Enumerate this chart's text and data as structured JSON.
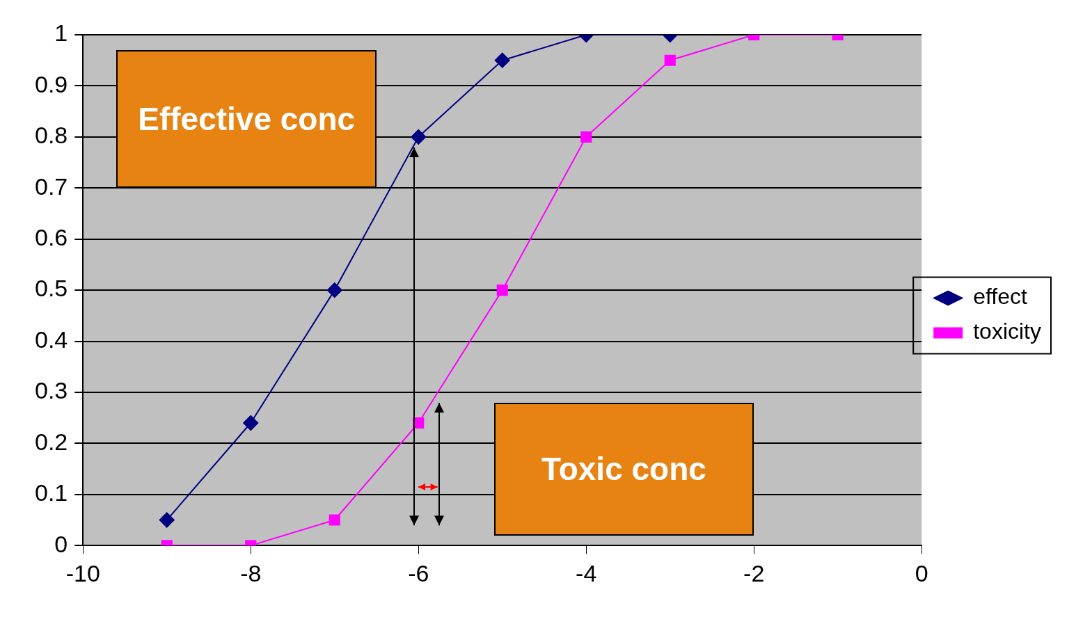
{
  "chart_data": {
    "type": "line",
    "series": [
      {
        "name": "effect",
        "color": "#000080",
        "marker": "diamond",
        "x": [
          -9,
          -8,
          -7,
          -6,
          -5,
          -4,
          -3
        ],
        "values": [
          0.05,
          0.24,
          0.5,
          0.8,
          0.95,
          1,
          1
        ]
      },
      {
        "name": "toxicity",
        "color": "#ff00ff",
        "marker": "square",
        "x": [
          -9,
          -8,
          -7,
          -6,
          -5,
          -4,
          -3,
          -2,
          -1
        ],
        "values": [
          0,
          0,
          0.05,
          0.24,
          0.5,
          0.8,
          0.95,
          1,
          1
        ]
      }
    ],
    "xlim": [
      -10,
      0
    ],
    "xticks": [
      -10,
      -8,
      -6,
      -4,
      -2,
      0
    ],
    "ylim": [
      0,
      1
    ],
    "yticks": [
      0,
      0.1,
      0.2,
      0.3,
      0.4,
      0.5,
      0.6,
      0.7,
      0.8,
      0.9,
      1
    ],
    "grid": "y",
    "legend": "right",
    "line_style": "solid",
    "annotations": [
      "Effective conc",
      "Toxic conc"
    ]
  }
}
